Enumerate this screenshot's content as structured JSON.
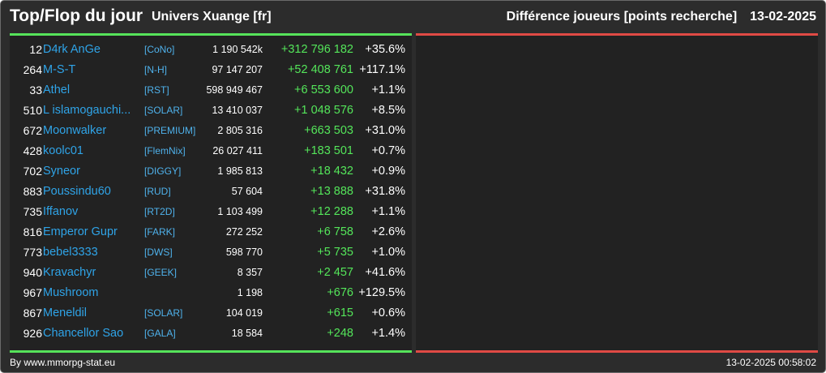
{
  "header": {
    "title": "Top/Flop du jour",
    "universe": "Univers Xuange [fr]",
    "category": "Différence joueurs [points recherche]",
    "date": "13-02-2025"
  },
  "colors": {
    "background": "#2c2c2c",
    "panel": "#222222",
    "top_accent": "#56e35a",
    "flop_accent": "#e04a45",
    "player_name": "#2fa4e8",
    "diff_positive": "#54e65a"
  },
  "top": [
    {
      "rank": "12",
      "name": "D4rk AnGe",
      "alliance": "[CoNo]",
      "points": "1 190 542k",
      "diff": "+312 796 182",
      "pct": "+35.6%"
    },
    {
      "rank": "264",
      "name": "M-S-T",
      "alliance": "[N-H]",
      "points": "97 147 207",
      "diff": "+52 408 761",
      "pct": "+117.1%"
    },
    {
      "rank": "33",
      "name": "Athel",
      "alliance": "[RST]",
      "points": "598 949 467",
      "diff": "+6 553 600",
      "pct": "+1.1%"
    },
    {
      "rank": "510",
      "name": "L islamogauchi...",
      "alliance": "[SOLAR]",
      "points": "13 410 037",
      "diff": "+1 048 576",
      "pct": "+8.5%"
    },
    {
      "rank": "672",
      "name": "Moonwalker",
      "alliance": "[PREMIUM]",
      "points": "2 805 316",
      "diff": "+663 503",
      "pct": "+31.0%"
    },
    {
      "rank": "428",
      "name": "koolc01",
      "alliance": "[FlemNix]",
      "points": "26 027 411",
      "diff": "+183 501",
      "pct": "+0.7%"
    },
    {
      "rank": "702",
      "name": "Syneor",
      "alliance": "[DIGGY]",
      "points": "1 985 813",
      "diff": "+18 432",
      "pct": "+0.9%"
    },
    {
      "rank": "883",
      "name": "Poussindu60",
      "alliance": "[RUD]",
      "points": "57 604",
      "diff": "+13 888",
      "pct": "+31.8%"
    },
    {
      "rank": "735",
      "name": "Iffanov",
      "alliance": "[RT2D]",
      "points": "1 103 499",
      "diff": "+12 288",
      "pct": "+1.1%"
    },
    {
      "rank": "816",
      "name": "Emperor Gupr",
      "alliance": "[FARK]",
      "points": "272 252",
      "diff": "+6 758",
      "pct": "+2.6%"
    },
    {
      "rank": "773",
      "name": "bebel3333",
      "alliance": "[DWS]",
      "points": "598 770",
      "diff": "+5 735",
      "pct": "+1.0%"
    },
    {
      "rank": "940",
      "name": "Kravachyr",
      "alliance": "[GEEK]",
      "points": "8 357",
      "diff": "+2 457",
      "pct": "+41.6%"
    },
    {
      "rank": "967",
      "name": "Mushroom",
      "alliance": "",
      "points": "1 198",
      "diff": "+676",
      "pct": "+129.5%"
    },
    {
      "rank": "867",
      "name": "Meneldil",
      "alliance": "[SOLAR]",
      "points": "104 019",
      "diff": "+615",
      "pct": "+0.6%"
    },
    {
      "rank": "926",
      "name": "Chancellor Sao",
      "alliance": "[GALA]",
      "points": "18 584",
      "diff": "+248",
      "pct": "+1.4%"
    }
  ],
  "flop": [],
  "footer": {
    "source": "By www.mmorpg-stat.eu",
    "timestamp": "13-02-2025 00:58:02"
  }
}
